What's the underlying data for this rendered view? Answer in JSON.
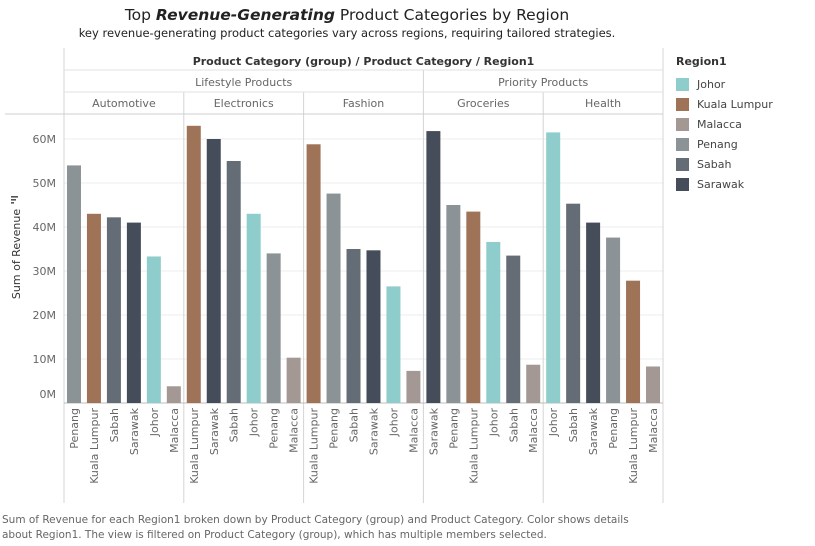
{
  "title": {
    "prefix": "Top ",
    "emphasis": "Revenue-Generating",
    "suffix": " Product Categories by Region"
  },
  "subtitle": "key revenue-generating product categories vary across regions, requiring tailored strategies.",
  "caption": "Sum of Revenue for each Region1 broken down by Product Category (group) and Product Category.  Color shows details about Region1. The view is filtered on Product Category (group), which has multiple members selected.",
  "legend": {
    "title": "Region1",
    "items": [
      {
        "label": "Johor",
        "color": "#8fcccc"
      },
      {
        "label": "Kuala Lumpur",
        "color": "#9e7358"
      },
      {
        "label": "Malacca",
        "color": "#a39893"
      },
      {
        "label": "Penang",
        "color": "#8b9396"
      },
      {
        "label": "Sabah",
        "color": "#646d76"
      },
      {
        "label": "Sarawak",
        "color": "#454c5a"
      }
    ]
  },
  "chart_data": {
    "type": "bar",
    "title": "Top Revenue-Generating Product Categories by Region",
    "header": "Product Category (group) / Product Category / Region1",
    "ylabel": "Sum of Revenue",
    "ylim": [
      0,
      60000000
    ],
    "yticks": [
      {
        "value": 0,
        "label": "0M"
      },
      {
        "value": 10000000,
        "label": "10M"
      },
      {
        "value": 20000000,
        "label": "20M"
      },
      {
        "value": 30000000,
        "label": "30M"
      },
      {
        "value": 40000000,
        "label": "40M"
      },
      {
        "value": 50000000,
        "label": "50M"
      },
      {
        "value": 60000000,
        "label": "60M"
      }
    ],
    "groups": [
      {
        "name": "Lifestyle Products",
        "categories": [
          {
            "name": "Automotive",
            "bars": [
              {
                "region": "Penang",
                "value": 54000000
              },
              {
                "region": "Kuala Lumpur",
                "value": 43000000
              },
              {
                "region": "Sabah",
                "value": 42200000
              },
              {
                "region": "Sarawak",
                "value": 41000000
              },
              {
                "region": "Johor",
                "value": 33300000
              },
              {
                "region": "Malacca",
                "value": 3800000
              }
            ]
          },
          {
            "name": "Electronics",
            "bars": [
              {
                "region": "Kuala Lumpur",
                "value": 63000000
              },
              {
                "region": "Sarawak",
                "value": 60000000
              },
              {
                "region": "Sabah",
                "value": 55000000
              },
              {
                "region": "Johor",
                "value": 43000000
              },
              {
                "region": "Penang",
                "value": 34000000
              },
              {
                "region": "Malacca",
                "value": 10300000
              }
            ]
          },
          {
            "name": "Fashion",
            "bars": [
              {
                "region": "Kuala Lumpur",
                "value": 58800000
              },
              {
                "region": "Penang",
                "value": 47600000
              },
              {
                "region": "Sabah",
                "value": 35000000
              },
              {
                "region": "Sarawak",
                "value": 34700000
              },
              {
                "region": "Johor",
                "value": 26500000
              },
              {
                "region": "Malacca",
                "value": 7300000
              }
            ]
          }
        ]
      },
      {
        "name": "Priority Products",
        "categories": [
          {
            "name": "Groceries",
            "bars": [
              {
                "region": "Sarawak",
                "value": 61800000
              },
              {
                "region": "Penang",
                "value": 45000000
              },
              {
                "region": "Kuala Lumpur",
                "value": 43500000
              },
              {
                "region": "Johor",
                "value": 36600000
              },
              {
                "region": "Sabah",
                "value": 33500000
              },
              {
                "region": "Malacca",
                "value": 8700000
              }
            ]
          },
          {
            "name": "Health",
            "bars": [
              {
                "region": "Johor",
                "value": 61500000
              },
              {
                "region": "Sabah",
                "value": 45300000
              },
              {
                "region": "Sarawak",
                "value": 41000000
              },
              {
                "region": "Penang",
                "value": 37600000
              },
              {
                "region": "Kuala Lumpur",
                "value": 27800000
              },
              {
                "region": "Malacca",
                "value": 8300000
              }
            ]
          }
        ]
      }
    ],
    "grid": true,
    "legend_position": "right"
  }
}
